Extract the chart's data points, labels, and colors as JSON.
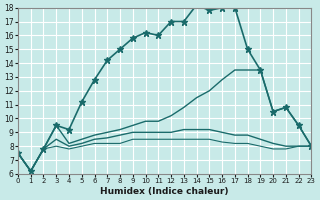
{
  "xlabel": "Humidex (Indice chaleur)",
  "xlim": [
    0,
    23
  ],
  "ylim": [
    6,
    18
  ],
  "yticks": [
    6,
    7,
    8,
    9,
    10,
    11,
    12,
    13,
    14,
    15,
    16,
    17,
    18
  ],
  "xticks": [
    0,
    1,
    2,
    3,
    4,
    5,
    6,
    7,
    8,
    9,
    10,
    11,
    12,
    13,
    14,
    15,
    16,
    17,
    18,
    19,
    20,
    21,
    22,
    23
  ],
  "bg_color": "#c8eae8",
  "line_color": "#1a6b6b",
  "grid_color": "#ffffff",
  "lines": [
    {
      "x": [
        0,
        1,
        2,
        3,
        4,
        5,
        6,
        7,
        8,
        9,
        10,
        11,
        12,
        13,
        14,
        15,
        16,
        17,
        18,
        19,
        20,
        21,
        22,
        23
      ],
      "y": [
        7.5,
        6.2,
        7.8,
        9.5,
        9.2,
        11.2,
        12.8,
        14.2,
        15.0,
        15.8,
        16.2,
        16.0,
        17.0,
        17.0,
        18.2,
        17.8,
        18.0,
        18.0,
        15.0,
        13.5,
        10.5,
        10.8,
        9.5,
        8.0
      ],
      "marker": "*",
      "markersize": 5,
      "linewidth": 1.2
    },
    {
      "x": [
        0,
        1,
        2,
        3,
        4,
        5,
        6,
        7,
        8,
        9,
        10,
        11,
        12,
        13,
        14,
        15,
        16,
        17,
        18,
        19,
        20,
        21,
        22,
        23
      ],
      "y": [
        7.5,
        6.2,
        7.8,
        9.5,
        8.2,
        8.5,
        8.8,
        9.0,
        9.2,
        9.5,
        9.8,
        9.8,
        10.2,
        10.8,
        11.5,
        12.0,
        12.8,
        13.5,
        13.5,
        13.5,
        10.5,
        10.8,
        9.5,
        8.0
      ],
      "marker": null,
      "markersize": 0,
      "linewidth": 1.0
    },
    {
      "x": [
        0,
        1,
        2,
        3,
        4,
        5,
        6,
        7,
        8,
        9,
        10,
        11,
        12,
        13,
        14,
        15,
        16,
        17,
        18,
        19,
        20,
        21,
        22,
        23
      ],
      "y": [
        7.5,
        6.2,
        7.8,
        8.5,
        8.0,
        8.2,
        8.5,
        8.6,
        8.8,
        9.0,
        9.0,
        9.0,
        9.0,
        9.2,
        9.2,
        9.2,
        9.0,
        8.8,
        8.8,
        8.5,
        8.2,
        8.0,
        8.0,
        8.0
      ],
      "marker": null,
      "markersize": 0,
      "linewidth": 1.0
    },
    {
      "x": [
        0,
        1,
        2,
        3,
        4,
        5,
        6,
        7,
        8,
        9,
        10,
        11,
        12,
        13,
        14,
        15,
        16,
        17,
        18,
        19,
        20,
        21,
        22,
        23
      ],
      "y": [
        7.5,
        6.2,
        7.8,
        8.0,
        7.8,
        8.0,
        8.2,
        8.2,
        8.2,
        8.5,
        8.5,
        8.5,
        8.5,
        8.5,
        8.5,
        8.5,
        8.3,
        8.2,
        8.2,
        8.0,
        7.8,
        7.8,
        8.0,
        8.0
      ],
      "marker": null,
      "markersize": 0,
      "linewidth": 0.8
    }
  ]
}
